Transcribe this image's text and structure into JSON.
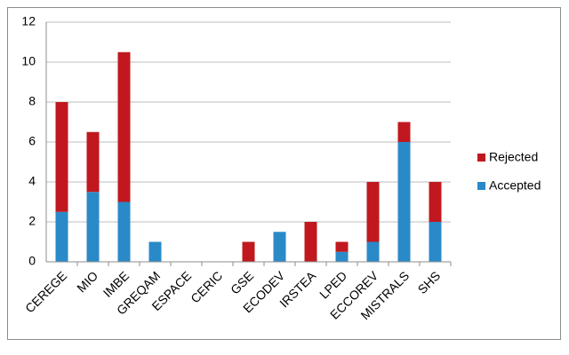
{
  "chart_data": {
    "type": "stacked_bar",
    "categories": [
      "CEREGE",
      "MIO",
      "IMBE",
      "GREQAM",
      "ESPACE",
      "CERIC",
      "GSE",
      "ECODEV",
      "IRSTEA",
      "LPED",
      "ECCOREV",
      "MISTRALS",
      "SHS"
    ],
    "series": [
      {
        "name": "Accepted",
        "color": "#2a8ac8",
        "values": [
          2.5,
          3.5,
          3,
          1,
          0,
          0,
          0,
          1.5,
          0,
          0.5,
          1,
          6,
          2
        ]
      },
      {
        "name": "Rejected",
        "color": "#c0181e",
        "values": [
          5.5,
          3,
          7.5,
          0,
          0,
          0,
          1,
          0,
          2,
          0.5,
          3,
          1,
          2
        ]
      }
    ],
    "ylim": [
      0,
      12
    ],
    "yticks": [
      0,
      2,
      4,
      6,
      8,
      10,
      12
    ],
    "grid": true,
    "legend": "right"
  }
}
